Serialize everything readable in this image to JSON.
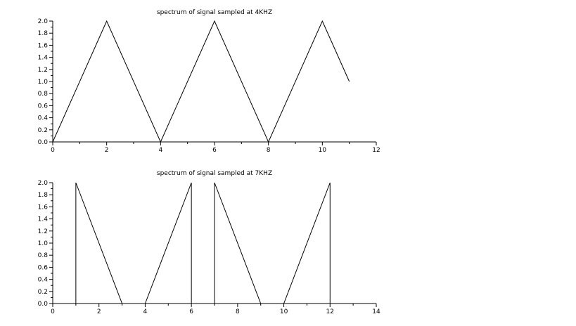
{
  "chart_data": [
    {
      "type": "line",
      "title": "spectrum of signal sampled at 4KHZ",
      "xlabel": "",
      "ylabel": "",
      "xlim": [
        0,
        12
      ],
      "ylim": [
        0,
        2.0
      ],
      "x_ticks": [
        "0",
        "2",
        "4",
        "6",
        "8",
        "10",
        "12"
      ],
      "y_ticks": [
        "0.0",
        "0.2",
        "0.4",
        "0.6",
        "0.8",
        "1.0",
        "1.2",
        "1.4",
        "1.6",
        "1.8",
        "2.0"
      ],
      "grid": false,
      "series": [
        {
          "color": "#000000",
          "x": [
            0,
            2,
            4,
            6,
            8,
            10,
            11
          ],
          "y": [
            0,
            2,
            0,
            2,
            0,
            2,
            1
          ]
        }
      ]
    },
    {
      "type": "line",
      "title": "spectrum of signal sampled at 7KHZ",
      "xlabel": "",
      "ylabel": "",
      "xlim": [
        0,
        14
      ],
      "ylim": [
        0,
        2.0
      ],
      "x_ticks": [
        "0",
        "2",
        "4",
        "6",
        "8",
        "10",
        "12",
        "14"
      ],
      "y_ticks": [
        "0.0",
        "0.2",
        "0.4",
        "0.6",
        "0.8",
        "1.0",
        "1.2",
        "1.4",
        "1.6",
        "1.8",
        "2.0"
      ],
      "grid": false,
      "series": [
        {
          "color": "#000000",
          "x": [
            1,
            1,
            3,
            4,
            6,
            6,
            7,
            7,
            9,
            10,
            12,
            12
          ],
          "y": [
            0,
            2,
            0,
            0,
            2,
            0,
            0,
            2,
            0,
            0,
            2,
            0
          ]
        }
      ]
    }
  ]
}
